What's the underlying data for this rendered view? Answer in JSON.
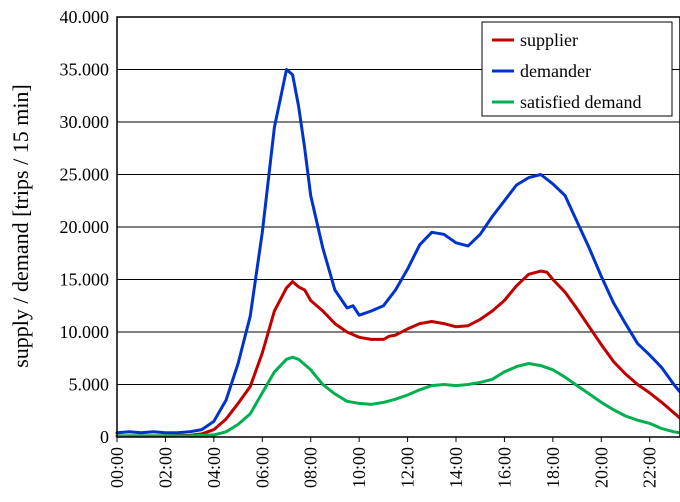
{
  "chart_data": {
    "type": "line",
    "title": "",
    "xlabel": "",
    "ylabel": "supply / demand [trips / 15 min]",
    "ylim": [
      0,
      40000
    ],
    "xlim": [
      0,
      23.25
    ],
    "y_ticks": [
      {
        "v": 0,
        "label": "0"
      },
      {
        "v": 5000,
        "label": "5.000"
      },
      {
        "v": 10000,
        "label": "10.000"
      },
      {
        "v": 15000,
        "label": "15.000"
      },
      {
        "v": 20000,
        "label": "20.000"
      },
      {
        "v": 25000,
        "label": "25.000"
      },
      {
        "v": 30000,
        "label": "30.000"
      },
      {
        "v": 35000,
        "label": "35.000"
      },
      {
        "v": 40000,
        "label": "40.000"
      }
    ],
    "x_ticks": [
      {
        "v": 0,
        "label": "00:00"
      },
      {
        "v": 2,
        "label": "02:00"
      },
      {
        "v": 4,
        "label": "04:00"
      },
      {
        "v": 6,
        "label": "06:00"
      },
      {
        "v": 8,
        "label": "08:00"
      },
      {
        "v": 10,
        "label": "10:00"
      },
      {
        "v": 12,
        "label": "12:00"
      },
      {
        "v": 14,
        "label": "14:00"
      },
      {
        "v": 16,
        "label": "16:00"
      },
      {
        "v": 18,
        "label": "18:00"
      },
      {
        "v": 20,
        "label": "20:00"
      },
      {
        "v": 22,
        "label": "22:00"
      }
    ],
    "grid": true,
    "legend_position": "top-right",
    "series": [
      {
        "name": "supplier",
        "color": "#c00000",
        "points": [
          [
            0,
            100
          ],
          [
            1,
            100
          ],
          [
            2,
            100
          ],
          [
            3,
            150
          ],
          [
            3.5,
            300
          ],
          [
            4,
            700
          ],
          [
            4.5,
            1700
          ],
          [
            5,
            3200
          ],
          [
            5.5,
            4800
          ],
          [
            6,
            8000
          ],
          [
            6.5,
            12000
          ],
          [
            7,
            14200
          ],
          [
            7.25,
            14800
          ],
          [
            7.5,
            14300
          ],
          [
            7.75,
            14000
          ],
          [
            8,
            13000
          ],
          [
            8.5,
            12000
          ],
          [
            9,
            10800
          ],
          [
            9.5,
            10000
          ],
          [
            10,
            9500
          ],
          [
            10.5,
            9300
          ],
          [
            11,
            9300
          ],
          [
            11.25,
            9600
          ],
          [
            11.5,
            9700
          ],
          [
            12,
            10300
          ],
          [
            12.5,
            10800
          ],
          [
            13,
            11000
          ],
          [
            13.5,
            10800
          ],
          [
            14,
            10500
          ],
          [
            14.5,
            10600
          ],
          [
            15,
            11200
          ],
          [
            15.5,
            12000
          ],
          [
            16,
            13000
          ],
          [
            16.5,
            14400
          ],
          [
            17,
            15500
          ],
          [
            17.5,
            15800
          ],
          [
            17.75,
            15700
          ],
          [
            18,
            15000
          ],
          [
            18.5,
            13800
          ],
          [
            19,
            12200
          ],
          [
            19.5,
            10500
          ],
          [
            20,
            8800
          ],
          [
            20.5,
            7200
          ],
          [
            21,
            6000
          ],
          [
            21.5,
            5000
          ],
          [
            22,
            4200
          ],
          [
            22.5,
            3300
          ],
          [
            23,
            2300
          ],
          [
            23.25,
            1800
          ]
        ]
      },
      {
        "name": "demander",
        "color": "#0033cc",
        "points": [
          [
            0,
            400
          ],
          [
            0.5,
            500
          ],
          [
            1,
            400
          ],
          [
            1.5,
            500
          ],
          [
            2,
            400
          ],
          [
            2.5,
            400
          ],
          [
            3,
            500
          ],
          [
            3.5,
            700
          ],
          [
            4,
            1500
          ],
          [
            4.5,
            3500
          ],
          [
            5,
            7000
          ],
          [
            5.5,
            11500
          ],
          [
            6,
            19500
          ],
          [
            6.5,
            29500
          ],
          [
            7,
            35000
          ],
          [
            7.25,
            34500
          ],
          [
            7.5,
            31500
          ],
          [
            7.75,
            27500
          ],
          [
            8,
            23000
          ],
          [
            8.5,
            18000
          ],
          [
            9,
            14000
          ],
          [
            9.5,
            12300
          ],
          [
            9.75,
            12500
          ],
          [
            10,
            11600
          ],
          [
            10.5,
            12000
          ],
          [
            11,
            12500
          ],
          [
            11.5,
            14000
          ],
          [
            12,
            16000
          ],
          [
            12.5,
            18300
          ],
          [
            13,
            19500
          ],
          [
            13.5,
            19300
          ],
          [
            14,
            18500
          ],
          [
            14.5,
            18200
          ],
          [
            15,
            19300
          ],
          [
            15.5,
            21000
          ],
          [
            16,
            22500
          ],
          [
            16.5,
            24000
          ],
          [
            17,
            24700
          ],
          [
            17.5,
            25000
          ],
          [
            18,
            24100
          ],
          [
            18.5,
            23000
          ],
          [
            19,
            20500
          ],
          [
            19.5,
            18000
          ],
          [
            20,
            15300
          ],
          [
            20.5,
            12800
          ],
          [
            21,
            10800
          ],
          [
            21.5,
            8900
          ],
          [
            22,
            7800
          ],
          [
            22.5,
            6600
          ],
          [
            23,
            5000
          ],
          [
            23.25,
            4300
          ]
        ]
      },
      {
        "name": "satisfied demand",
        "color": "#00b050",
        "points": [
          [
            0,
            100
          ],
          [
            2,
            100
          ],
          [
            3,
            100
          ],
          [
            4,
            200
          ],
          [
            4.5,
            500
          ],
          [
            5,
            1200
          ],
          [
            5.5,
            2200
          ],
          [
            6,
            4200
          ],
          [
            6.5,
            6200
          ],
          [
            7,
            7400
          ],
          [
            7.25,
            7600
          ],
          [
            7.5,
            7400
          ],
          [
            8,
            6400
          ],
          [
            8.5,
            5000
          ],
          [
            9,
            4100
          ],
          [
            9.5,
            3400
          ],
          [
            10,
            3200
          ],
          [
            10.5,
            3100
          ],
          [
            11,
            3300
          ],
          [
            11.5,
            3600
          ],
          [
            12,
            4000
          ],
          [
            12.5,
            4500
          ],
          [
            13,
            4900
          ],
          [
            13.5,
            5000
          ],
          [
            14,
            4900
          ],
          [
            14.5,
            5000
          ],
          [
            15,
            5200
          ],
          [
            15.5,
            5500
          ],
          [
            16,
            6200
          ],
          [
            16.5,
            6700
          ],
          [
            17,
            7000
          ],
          [
            17.5,
            6800
          ],
          [
            18,
            6400
          ],
          [
            18.5,
            5700
          ],
          [
            19,
            4900
          ],
          [
            19.5,
            4100
          ],
          [
            20,
            3300
          ],
          [
            20.5,
            2600
          ],
          [
            21,
            2000
          ],
          [
            21.5,
            1600
          ],
          [
            22,
            1300
          ],
          [
            22.5,
            800
          ],
          [
            23,
            500
          ],
          [
            23.25,
            400
          ]
        ]
      }
    ]
  }
}
